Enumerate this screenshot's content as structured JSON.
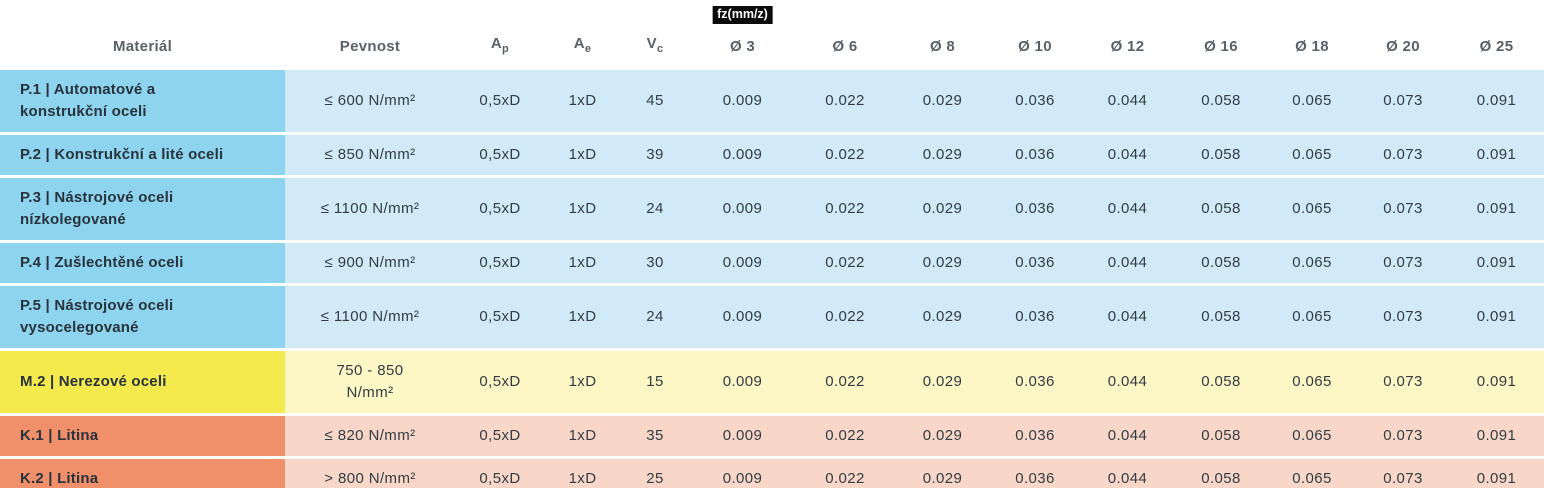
{
  "table": {
    "columns": {
      "material": "Materiál",
      "pevnost": "Pevnost",
      "ap": {
        "base": "A",
        "sub": "p"
      },
      "ae": {
        "base": "A",
        "sub": "e"
      },
      "vc": {
        "base": "V",
        "sub": "c"
      },
      "fz_badge": {
        "text": "fz(mm/z)",
        "bg": "#0b0b0b",
        "color": "#ffffff"
      },
      "diameters": [
        "Ø 3",
        "Ø 6",
        "Ø 8",
        "Ø 10",
        "Ø 12",
        "Ø 16",
        "Ø 18",
        "Ø 20",
        "Ø 25"
      ]
    },
    "group_colors": {
      "p": {
        "label_bg": "#8ed4ef",
        "cell_bg": "#d0eaf7"
      },
      "m": {
        "label_bg": "#f4ea4d",
        "cell_bg": "#fdf6c5"
      },
      "k": {
        "label_bg": "#f0906b",
        "cell_bg": "#f8d6c8"
      }
    },
    "rows": [
      {
        "group": "p",
        "material": "P.1 | Automatové a\nkonstrukční oceli",
        "pevnost": "≤ 600 N/mm²",
        "ap": "0,5xD",
        "ae": "1xD",
        "vc": "45",
        "fz": [
          "0.009",
          "0.022",
          "0.029",
          "0.036",
          "0.044",
          "0.058",
          "0.065",
          "0.073",
          "0.091"
        ]
      },
      {
        "group": "p",
        "material": "P.2 | Konstrukční a lité oceli",
        "pevnost": "≤ 850 N/mm²",
        "ap": "0,5xD",
        "ae": "1xD",
        "vc": "39",
        "fz": [
          "0.009",
          "0.022",
          "0.029",
          "0.036",
          "0.044",
          "0.058",
          "0.065",
          "0.073",
          "0.091"
        ]
      },
      {
        "group": "p",
        "material": "P.3 | Nástrojové oceli\nnízkolegované",
        "pevnost": "≤ 1100 N/mm²",
        "ap": "0,5xD",
        "ae": "1xD",
        "vc": "24",
        "fz": [
          "0.009",
          "0.022",
          "0.029",
          "0.036",
          "0.044",
          "0.058",
          "0.065",
          "0.073",
          "0.091"
        ]
      },
      {
        "group": "p",
        "material": "P.4 | Zušlechtěné oceli",
        "pevnost": "≤ 900 N/mm²",
        "ap": "0,5xD",
        "ae": "1xD",
        "vc": "30",
        "fz": [
          "0.009",
          "0.022",
          "0.029",
          "0.036",
          "0.044",
          "0.058",
          "0.065",
          "0.073",
          "0.091"
        ]
      },
      {
        "group": "p",
        "material": "P.5 | Nástrojové oceli\nvysocelegované",
        "pevnost": "≤ 1100 N/mm²",
        "ap": "0,5xD",
        "ae": "1xD",
        "vc": "24",
        "fz": [
          "0.009",
          "0.022",
          "0.029",
          "0.036",
          "0.044",
          "0.058",
          "0.065",
          "0.073",
          "0.091"
        ]
      },
      {
        "group": "m",
        "material": "M.2 | Nerezové oceli",
        "pevnost": "750 - 850\nN/mm²",
        "ap": "0,5xD",
        "ae": "1xD",
        "vc": "15",
        "fz": [
          "0.009",
          "0.022",
          "0.029",
          "0.036",
          "0.044",
          "0.058",
          "0.065",
          "0.073",
          "0.091"
        ]
      },
      {
        "group": "k",
        "material": "K.1 | Litina",
        "pevnost": "≤ 820 N/mm²",
        "ap": "0,5xD",
        "ae": "1xD",
        "vc": "35",
        "fz": [
          "0.009",
          "0.022",
          "0.029",
          "0.036",
          "0.044",
          "0.058",
          "0.065",
          "0.073",
          "0.091"
        ]
      },
      {
        "group": "k",
        "material": "K.2 | Litina",
        "pevnost": "> 800 N/mm²",
        "ap": "0,5xD",
        "ae": "1xD",
        "vc": "25",
        "fz": [
          "0.009",
          "0.022",
          "0.029",
          "0.036",
          "0.044",
          "0.058",
          "0.065",
          "0.073",
          "0.091"
        ]
      }
    ]
  }
}
